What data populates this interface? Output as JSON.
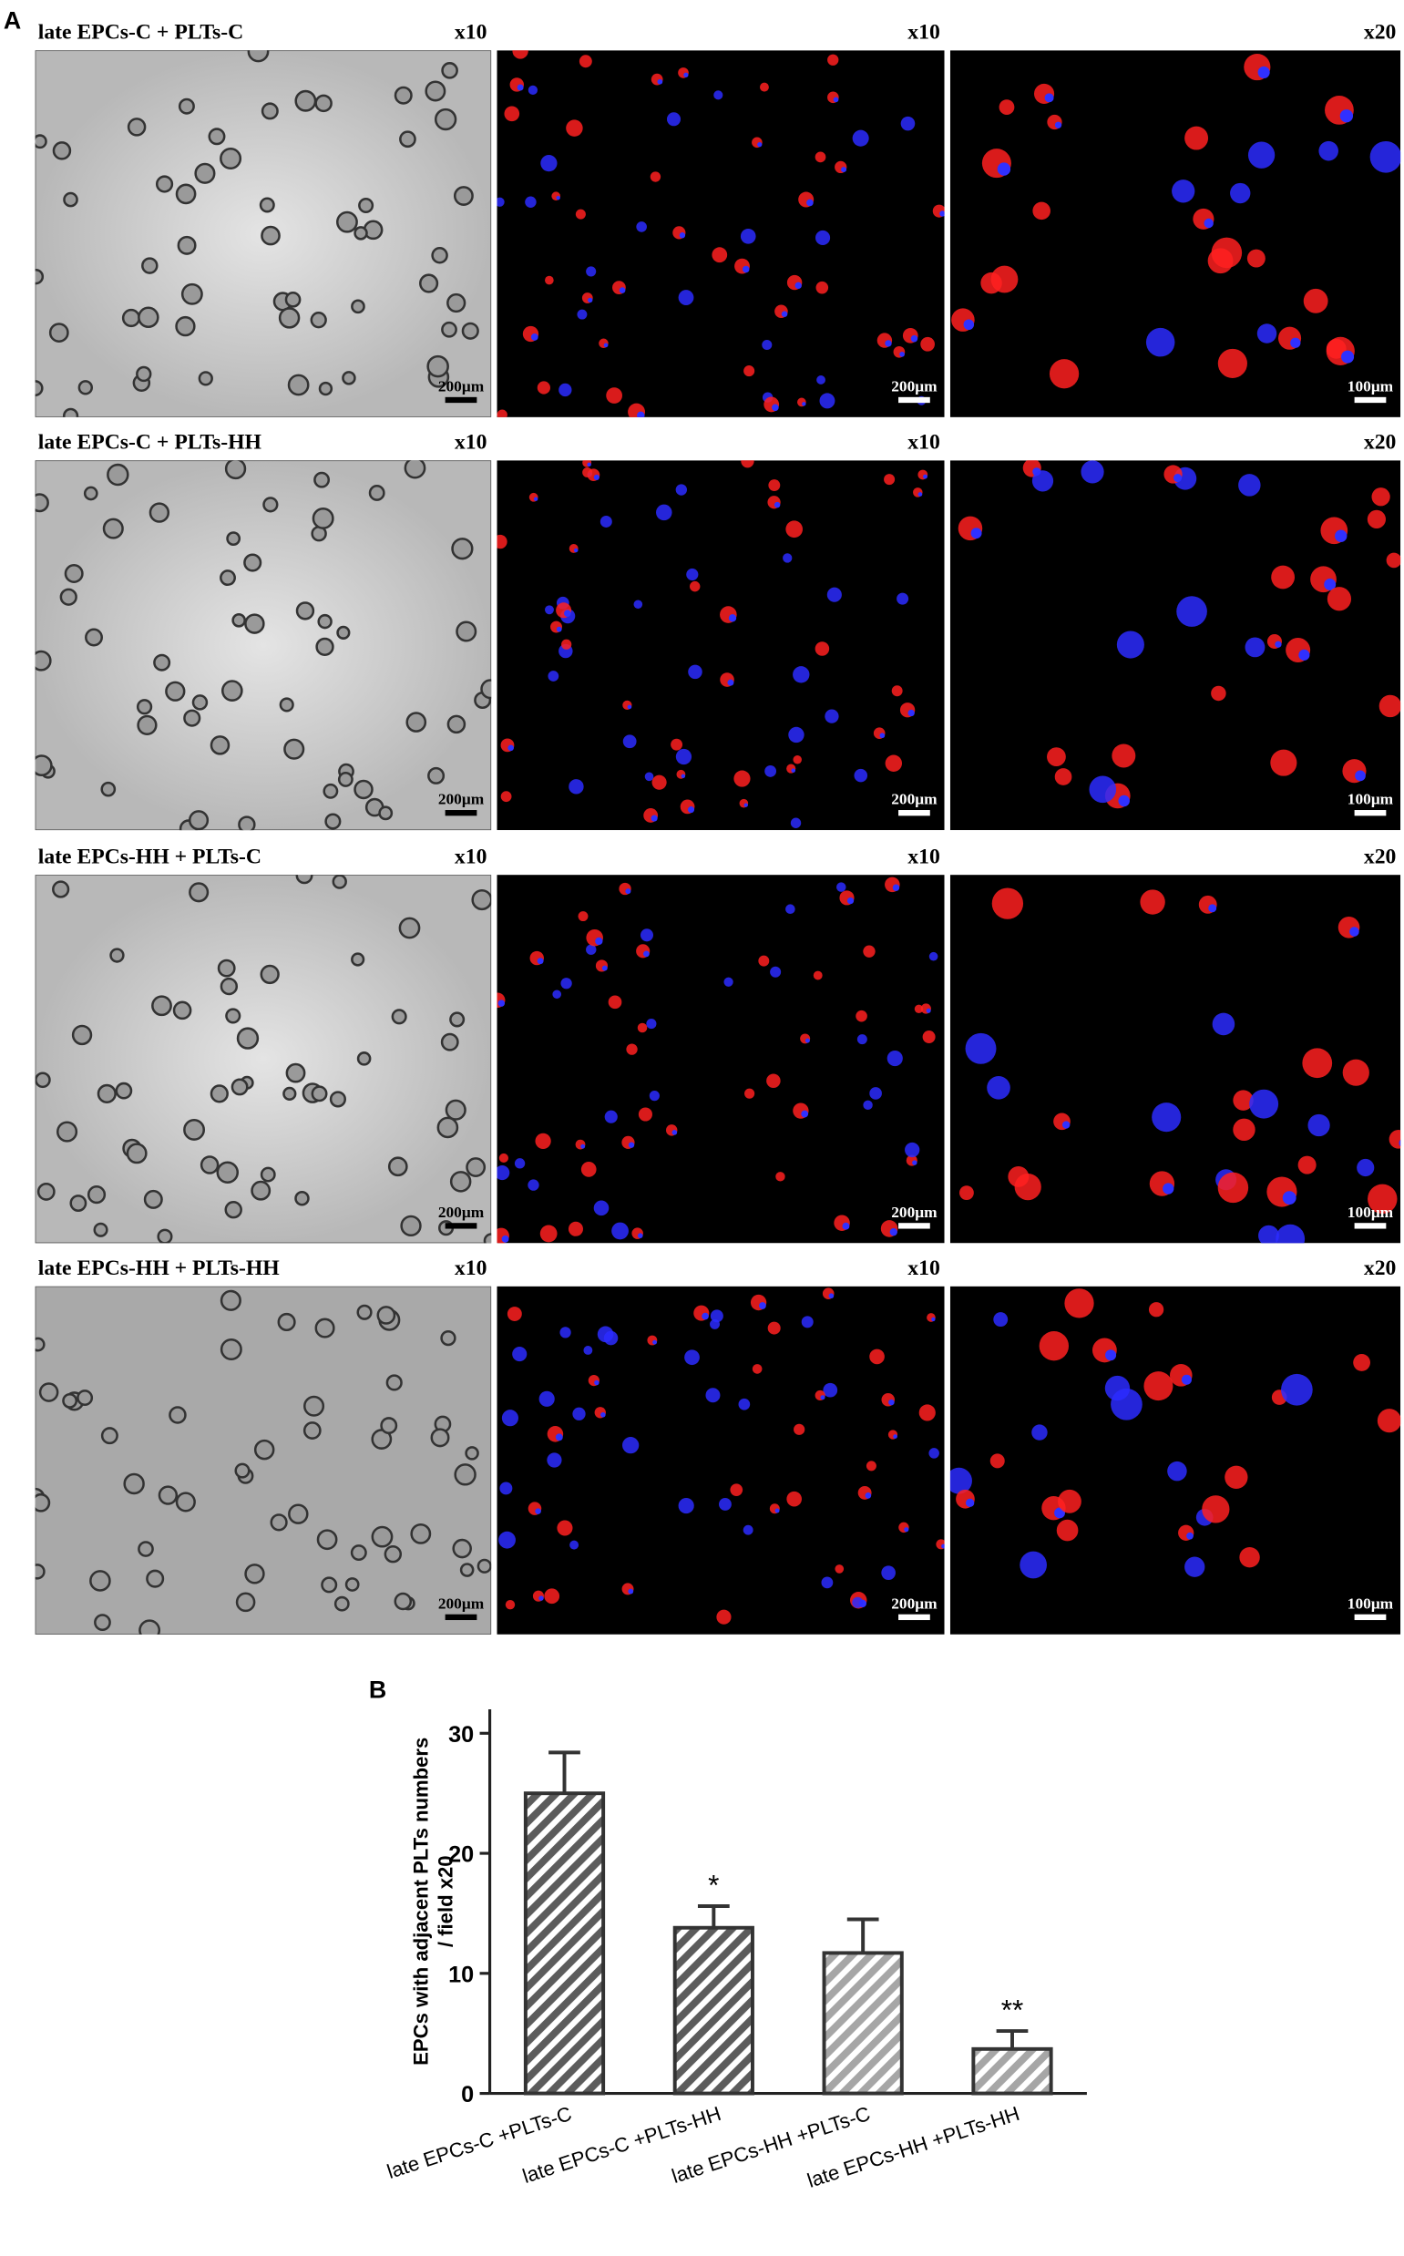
{
  "panel_labels": [
    "A",
    "B"
  ],
  "micrographs": {
    "rows": [
      {
        "title": "late EPCs-C + PLTs-C",
        "images": [
          {
            "magnification": "x10",
            "scale": "200μm"
          },
          {
            "magnification": "x10",
            "scale": "200μm"
          },
          {
            "magnification": "x20",
            "scale": "100μm"
          }
        ]
      },
      {
        "title": "late EPCs-C + PLTs-HH",
        "images": [
          {
            "magnification": "x10",
            "scale": "200μm"
          },
          {
            "magnification": "x10",
            "scale": "200μm"
          },
          {
            "magnification": "x20",
            "scale": "100μm"
          }
        ]
      },
      {
        "title": "late EPCs-HH + PLTs-C",
        "images": [
          {
            "magnification": "x10",
            "scale": "200μm"
          },
          {
            "magnification": "x10",
            "scale": "200μm"
          },
          {
            "magnification": "x20",
            "scale": "100μm"
          }
        ]
      },
      {
        "title": "late EPCs-HH + PLTs-HH",
        "images": [
          {
            "magnification": "x10",
            "scale": "200μm"
          },
          {
            "magnification": "x10",
            "scale": "200μm"
          },
          {
            "magnification": "x20",
            "scale": "100μm"
          }
        ]
      }
    ]
  },
  "chart_data": {
    "type": "bar",
    "y_label": [
      "EPCs with adjacent PLTs numbers",
      "/ field x20"
    ],
    "categories": [
      "late EPCs-C +PLTs-C",
      "late EPCs-C +PLTs-HH",
      "late EPCs-HH +PLTs-C",
      "late EPCs-HH +PLTs-HH"
    ],
    "values": [
      25,
      13.8,
      11.7,
      3.7
    ],
    "errors": [
      3.4,
      1.8,
      2.8,
      1.5
    ],
    "annotations": [
      null,
      "*",
      null,
      "**"
    ],
    "colors": [
      "#5c5c5c",
      "#5c5c5c",
      "#a6a6a6",
      "#a6a6a6"
    ],
    "ylim": [
      0,
      32
    ],
    "yticks": [
      0,
      10,
      20,
      30
    ]
  }
}
